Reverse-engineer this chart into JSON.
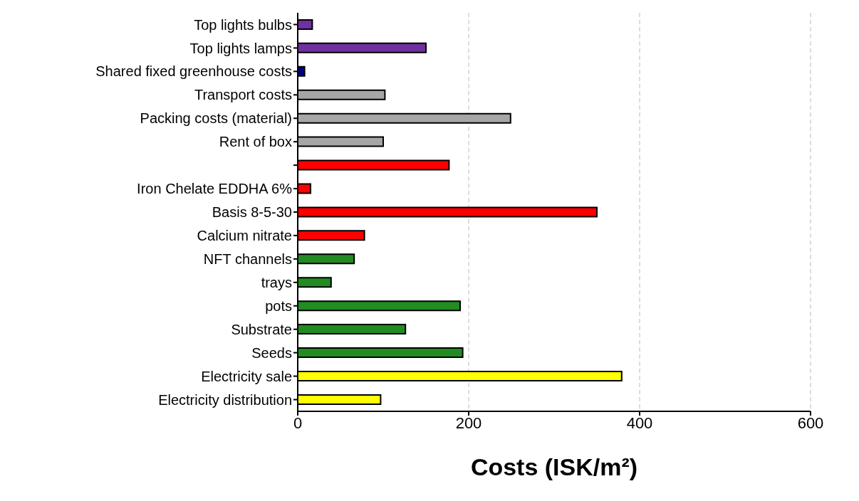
{
  "chart_data": {
    "type": "bar",
    "orientation": "horizontal",
    "xlabel": "Costs (ISK/m²)",
    "categories": [
      "Top lights bulbs",
      "Top lights lamps",
      "Shared fixed greenhouse costs",
      "Transport costs",
      "Packing costs (material)",
      "Rent of box",
      null,
      "Iron Chelate EDDHA 6%",
      "Basis 8-5-30",
      "Calcium nitrate",
      "NFT channels",
      "trays",
      "pots",
      "Substrate",
      "Seeds",
      "Electricity sale",
      "Electricity distribution"
    ],
    "values": [
      17,
      150,
      8,
      102,
      249,
      100,
      177,
      15,
      350,
      78,
      66,
      39,
      190,
      126,
      193,
      379,
      97
    ],
    "colors": [
      "#7030a0",
      "#7030a0",
      "#000080",
      "#a6a6a6",
      "#a6a6a6",
      "#a6a6a6",
      "#ff0000",
      "#ff0000",
      "#ff0000",
      "#ff0000",
      "#228b22",
      "#228b22",
      "#228b22",
      "#228b22",
      "#228b22",
      "#ffff00",
      "#ffff00"
    ],
    "xlim": [
      0,
      600
    ],
    "xticks": [
      0,
      200,
      400,
      600
    ],
    "grid": "x"
  }
}
